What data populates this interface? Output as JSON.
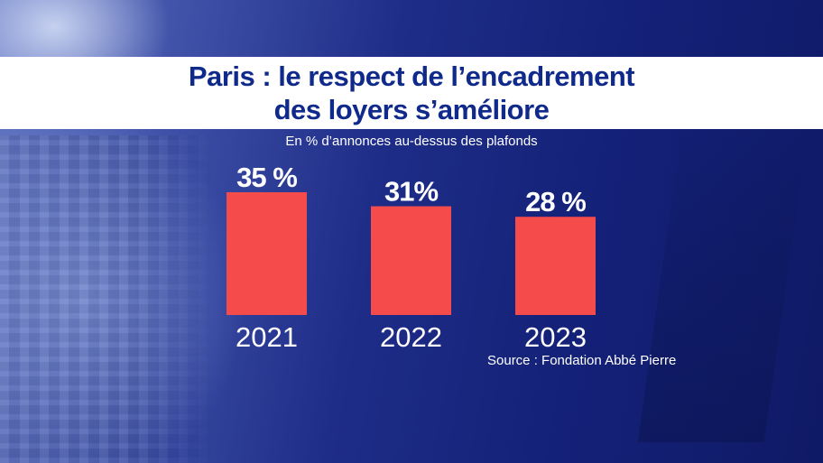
{
  "colors": {
    "bar": "#f64b4b",
    "title_text": "#102a8c",
    "title_band": "#ffffff",
    "label_text": "#ffffff"
  },
  "chart_data": {
    "type": "bar",
    "title_lines": [
      "Paris : le respect de l’encadrement",
      "des loyers s’améliore"
    ],
    "subtitle": "En % d’annonces au-dessus des plafonds",
    "categories": [
      "2021",
      "2022",
      "2023"
    ],
    "values": [
      35,
      31,
      28
    ],
    "value_labels": [
      "35 %",
      "31%",
      "28 %"
    ],
    "ylim": [
      0,
      35
    ],
    "grid": false,
    "legend": "none",
    "source": "Source : Fondation Abbé Pierre"
  }
}
